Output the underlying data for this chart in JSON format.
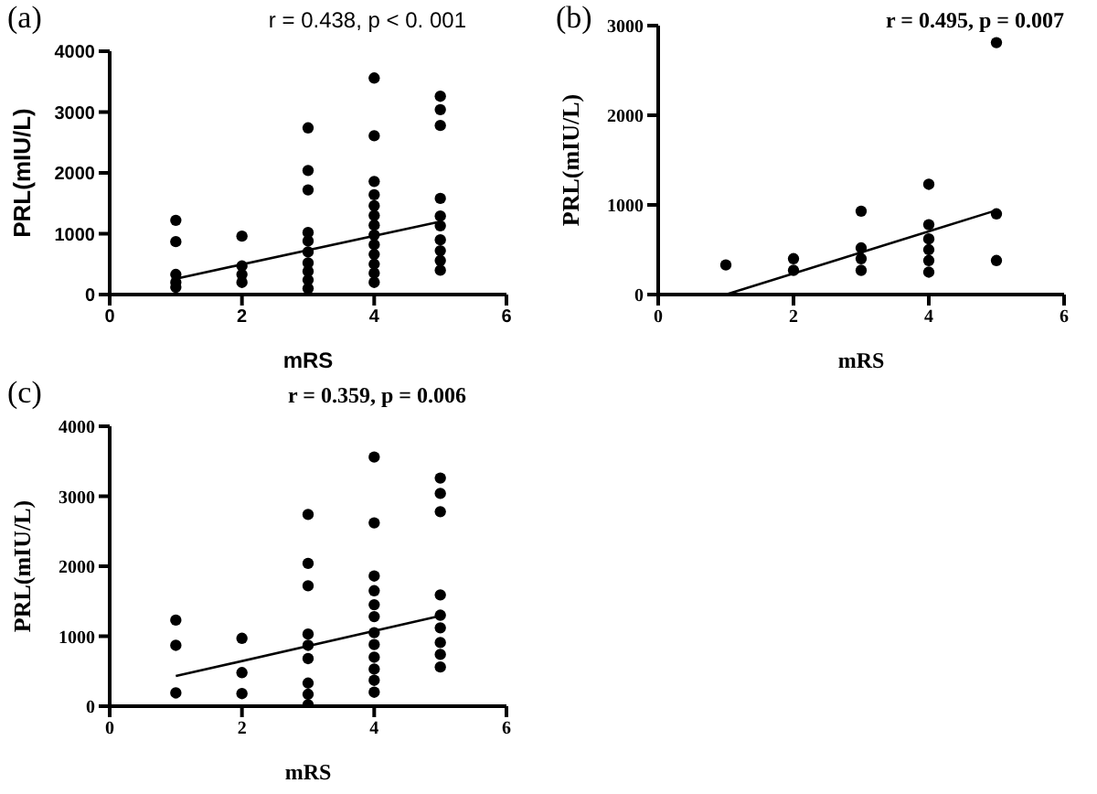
{
  "chart_data": [
    {
      "type": "scatter",
      "title": "r = 0.438, p < 0. 001",
      "annotations": [
        "(a)"
      ],
      "xlabel": "mRS",
      "ylabel": "PRL(mIU/L)",
      "xlim": [
        0,
        6
      ],
      "xticks": [
        0,
        2,
        4,
        6
      ],
      "ylim": [
        0,
        4000
      ],
      "yticks": [
        0,
        1000,
        2000,
        3000,
        4000
      ],
      "grid": false,
      "series": [
        {
          "marker": "circle",
          "color": "#000000",
          "x": [
            1,
            1,
            1,
            1,
            1,
            2,
            2,
            2,
            2,
            3,
            3,
            3,
            3,
            3,
            3,
            3,
            3,
            3,
            3,
            4,
            4,
            4,
            4,
            4,
            4,
            4,
            4,
            4,
            4,
            4,
            4,
            4,
            5,
            5,
            5,
            5,
            5,
            5,
            5,
            5,
            5,
            5
          ],
          "values": [
            1220,
            870,
            330,
            200,
            120,
            960,
            470,
            330,
            200,
            2740,
            2040,
            1720,
            1020,
            880,
            700,
            520,
            380,
            240,
            100,
            3560,
            2610,
            1860,
            1640,
            1460,
            1300,
            1140,
            980,
            820,
            660,
            500,
            350,
            200,
            3260,
            3040,
            2780,
            1580,
            1290,
            1130,
            900,
            720,
            560,
            400
          ]
        },
        {
          "type": "line",
          "marker": "none",
          "color": "#000000",
          "x": [
            1,
            5
          ],
          "values": [
            260,
            1200
          ]
        }
      ]
    },
    {
      "type": "scatter",
      "title": "r = 0.495, p = 0.007",
      "annotations": [
        "(b)"
      ],
      "xlabel": "mRS",
      "ylabel": "PRL(mIU/L)",
      "xlim": [
        0,
        6
      ],
      "xticks": [
        0,
        2,
        4,
        6
      ],
      "ylim": [
        0,
        3000
      ],
      "yticks": [
        0,
        1000,
        2000,
        3000
      ],
      "grid": false,
      "series": [
        {
          "marker": "circle",
          "color": "#000000",
          "x": [
            1,
            2,
            2,
            3,
            3,
            3,
            3,
            4,
            4,
            4,
            4,
            4,
            4,
            5,
            5,
            5
          ],
          "values": [
            330,
            400,
            270,
            930,
            520,
            400,
            270,
            1230,
            780,
            620,
            500,
            380,
            250,
            2810,
            900,
            380
          ]
        },
        {
          "type": "line",
          "marker": "none",
          "color": "#000000",
          "x": [
            1,
            5
          ],
          "values": [
            0,
            940
          ]
        }
      ]
    },
    {
      "type": "scatter",
      "title": "r = 0.359, p = 0.006",
      "annotations": [
        "(c)"
      ],
      "xlabel": "mRS",
      "ylabel": "PRL(mIU/L)",
      "xlim": [
        0,
        6
      ],
      "xticks": [
        0,
        2,
        4,
        6
      ],
      "ylim": [
        0,
        4000
      ],
      "yticks": [
        0,
        1000,
        2000,
        3000,
        4000
      ],
      "grid": false,
      "series": [
        {
          "marker": "circle",
          "color": "#000000",
          "x": [
            1,
            1,
            1,
            2,
            2,
            2,
            3,
            3,
            3,
            3,
            3,
            3,
            3,
            3,
            3,
            4,
            4,
            4,
            4,
            4,
            4,
            4,
            4,
            4,
            4,
            4,
            4,
            5,
            5,
            5,
            5,
            5,
            5,
            5,
            5,
            5
          ],
          "values": [
            1230,
            870,
            190,
            970,
            480,
            180,
            2740,
            2040,
            1720,
            1030,
            870,
            680,
            330,
            170,
            20,
            3560,
            2620,
            1860,
            1650,
            1450,
            1280,
            1050,
            880,
            700,
            530,
            370,
            200,
            3260,
            3040,
            2780,
            1590,
            1300,
            1120,
            910,
            740,
            560
          ]
        },
        {
          "type": "line",
          "marker": "none",
          "color": "#000000",
          "x": [
            1,
            5
          ],
          "values": [
            430,
            1290
          ]
        }
      ]
    }
  ]
}
